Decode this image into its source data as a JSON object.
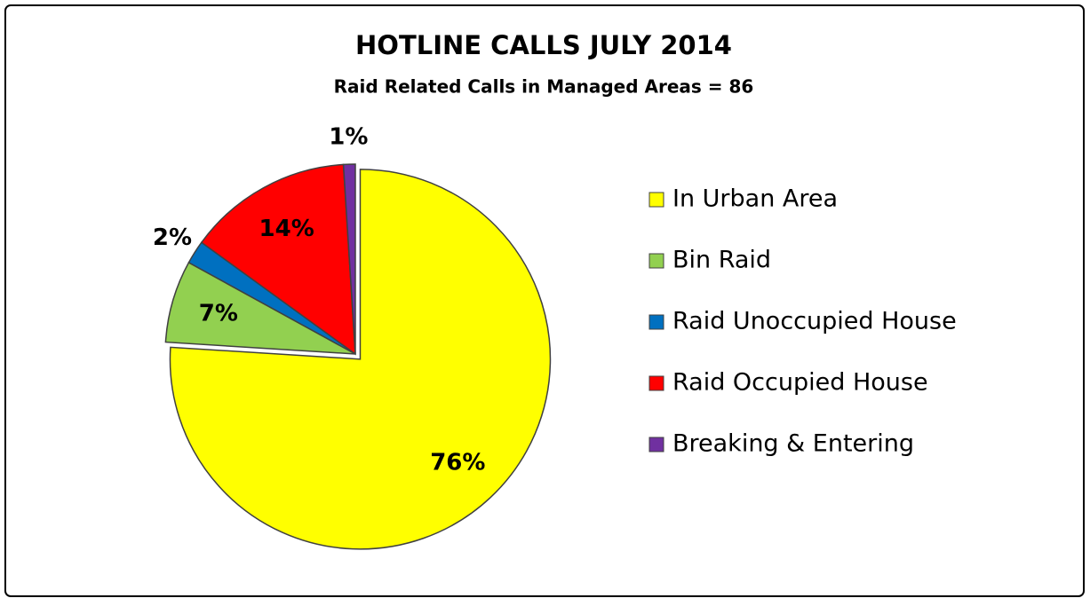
{
  "chart_data": {
    "type": "pie",
    "title": "HOTLINE CALLS JULY 2014",
    "subtitle": "Raid Related Calls in Managed Areas  =  86",
    "categories": [
      "In Urban Area",
      "Bin Raid",
      "Raid Unoccupied House",
      "Raid Occupied House",
      "Breaking & Entering"
    ],
    "values": [
      76,
      7,
      2,
      14,
      1
    ],
    "value_labels": [
      "76%",
      "7%",
      "2%",
      "14%",
      "1%"
    ],
    "colors": [
      "#ffff00",
      "#92d050",
      "#0070c0",
      "#ff0000",
      "#7030a0"
    ],
    "exploded": [
      true,
      false,
      false,
      false,
      false
    ],
    "legend": "right"
  }
}
